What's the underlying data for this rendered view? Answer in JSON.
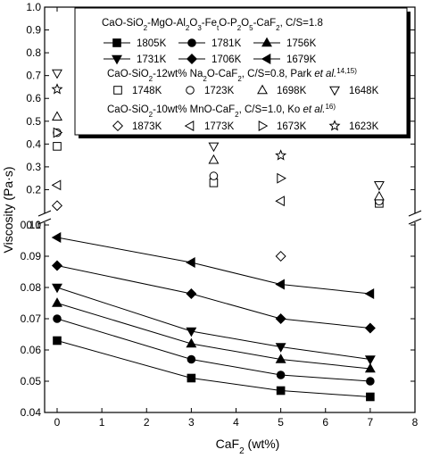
{
  "chart_data": {
    "type": "line",
    "xlabel": "CaF2 (wt%)",
    "xlabel_main": "CaF",
    "xlabel_sub": "2",
    "xlabel_tail": " (wt%)",
    "ylabel": "Viscosity (Pa·s)",
    "xlim": [
      0,
      8
    ],
    "x_ticks": [
      "0",
      "1",
      "2",
      "3",
      "4",
      "5",
      "6",
      "7",
      "8"
    ],
    "axis_break": true,
    "y_lower": {
      "range": [
        0.04,
        0.1
      ],
      "ticks": [
        "0.04",
        "0.05",
        "0.06",
        "0.07",
        "0.08",
        "0.09",
        "0.10"
      ]
    },
    "y_upper": {
      "range": [
        0.1,
        1.0
      ],
      "ticks": [
        "0.1",
        "0.2",
        "0.3",
        "0.4",
        "0.5",
        "0.6",
        "0.7",
        "0.8",
        "0.9",
        "1.0"
      ]
    },
    "grid": false,
    "legend_position": "top-right",
    "legend": {
      "group1_title": {
        "parts": [
          "CaO-SiO",
          "2",
          "-MgO-Al",
          "2",
          "O",
          "3",
          "-Fe",
          "t",
          "O-P",
          "2",
          "O",
          "5",
          "-CaF",
          "2",
          ", C/S=1.8"
        ]
      },
      "group2_title": {
        "parts": [
          "CaO-SiO",
          "2",
          "-12wt% Na",
          "2",
          "O-CaF",
          "2",
          ", C/S=0.8, Park ",
          "et al.",
          "14,15)"
        ]
      },
      "group3_title": {
        "parts": [
          "CaO-SiO",
          "2",
          "-10wt% MnO-CaF",
          "2",
          ", C/S=1.0, Ko ",
          "et al.",
          "16)"
        ]
      }
    },
    "series": [
      {
        "name": "1805K",
        "group": 1,
        "marker": "square",
        "x": [
          0,
          3,
          5,
          7
        ],
        "values": [
          0.063,
          0.051,
          0.047,
          0.045
        ]
      },
      {
        "name": "1781K",
        "group": 1,
        "marker": "circle",
        "x": [
          0,
          3,
          5,
          7
        ],
        "values": [
          0.07,
          0.057,
          0.052,
          0.05
        ]
      },
      {
        "name": "1756K",
        "group": 1,
        "marker": "triangle-up",
        "x": [
          0,
          3,
          5,
          7
        ],
        "values": [
          0.075,
          0.062,
          0.057,
          0.054
        ]
      },
      {
        "name": "1731K",
        "group": 1,
        "marker": "triangle-down",
        "x": [
          0,
          3,
          5,
          7
        ],
        "values": [
          0.08,
          0.066,
          0.061,
          0.057
        ]
      },
      {
        "name": "1706K",
        "group": 1,
        "marker": "diamond",
        "x": [
          0,
          3,
          5,
          7
        ],
        "values": [
          0.087,
          0.078,
          0.07,
          0.067
        ]
      },
      {
        "name": "1679K",
        "group": 1,
        "marker": "triangle-left",
        "x": [
          0,
          3,
          5,
          7
        ],
        "values": [
          0.096,
          0.088,
          0.081,
          0.078
        ]
      },
      {
        "name": "1748K",
        "group": 2,
        "marker": "open-square",
        "x": [
          0,
          3.5,
          7.2
        ],
        "values": [
          0.39,
          0.23,
          0.14
        ]
      },
      {
        "name": "1723K",
        "group": 2,
        "marker": "open-circle",
        "x": [
          0,
          3.5,
          7.2
        ],
        "values": [
          0.45,
          0.26,
          0.15
        ]
      },
      {
        "name": "1698K",
        "group": 2,
        "marker": "open-triangle-up",
        "x": [
          0,
          3.5,
          7.2
        ],
        "values": [
          0.52,
          0.33,
          0.17
        ]
      },
      {
        "name": "1648K",
        "group": 2,
        "marker": "open-triangle-down",
        "x": [
          0,
          3.5,
          7.2
        ],
        "values": [
          0.71,
          0.39,
          0.22
        ]
      },
      {
        "name": "1873K",
        "group": 3,
        "marker": "open-diamond",
        "x": [
          0,
          5
        ],
        "values": [
          0.13,
          0.09
        ]
      },
      {
        "name": "1773K",
        "group": 3,
        "marker": "open-triangle-left",
        "x": [
          0,
          5
        ],
        "values": [
          0.22,
          0.15
        ]
      },
      {
        "name": "1673K",
        "group": 3,
        "marker": "open-triangle-right",
        "x": [
          0,
          5
        ],
        "values": [
          0.45,
          0.25
        ]
      },
      {
        "name": "1623K",
        "group": 3,
        "marker": "open-star",
        "x": [
          0,
          5
        ],
        "values": [
          0.64,
          0.35
        ]
      }
    ]
  }
}
